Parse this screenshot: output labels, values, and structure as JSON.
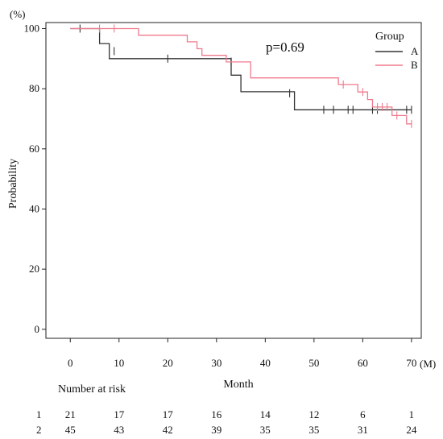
{
  "chart_data": {
    "type": "line",
    "subtype": "kaplan-meier",
    "ylabel": "Probability",
    "y_unit": "(%)",
    "xlabel": "Month",
    "x_unit": "(M)",
    "xlim": [
      -5,
      72
    ],
    "ylim": [
      -3,
      102
    ],
    "x_ticks": [
      0,
      10,
      20,
      30,
      40,
      50,
      60,
      70
    ],
    "y_ticks": [
      0,
      20,
      40,
      60,
      80,
      100
    ],
    "annotation": "p=0.69",
    "legend": {
      "title": "Group",
      "placement": "top-right",
      "entries": [
        {
          "label": "A",
          "color": "#333333"
        },
        {
          "label": "B",
          "color": "#f07a8e"
        }
      ]
    },
    "series": [
      {
        "name": "A",
        "color": "#333333",
        "steps": [
          [
            0,
            100
          ],
          [
            6,
            100
          ],
          [
            6,
            95
          ],
          [
            8,
            95
          ],
          [
            8,
            90
          ],
          [
            33,
            90
          ],
          [
            33,
            84.5
          ],
          [
            35,
            84.5
          ],
          [
            35,
            79
          ],
          [
            46,
            79
          ],
          [
            46,
            73
          ],
          [
            70,
            73
          ]
        ],
        "censors": [
          [
            2,
            100
          ],
          [
            9,
            92.5
          ],
          [
            20,
            90
          ],
          [
            33,
            89
          ],
          [
            45,
            78.5
          ],
          [
            52,
            73
          ],
          [
            54,
            73
          ],
          [
            57,
            73
          ],
          [
            58,
            73
          ],
          [
            62,
            73
          ],
          [
            63,
            73
          ],
          [
            69,
            73
          ],
          [
            70,
            73
          ]
        ]
      },
      {
        "name": "B",
        "color": "#f07a8e",
        "steps": [
          [
            0,
            100
          ],
          [
            14,
            100
          ],
          [
            14,
            97.8
          ],
          [
            24,
            97.8
          ],
          [
            24,
            95.6
          ],
          [
            26,
            95.6
          ],
          [
            26,
            93.3
          ],
          [
            27,
            93.3
          ],
          [
            27,
            91.1
          ],
          [
            32,
            91.1
          ],
          [
            32,
            88.9
          ],
          [
            37,
            88.9
          ],
          [
            37,
            83.6
          ],
          [
            55,
            83.6
          ],
          [
            55,
            81.4
          ],
          [
            59,
            81.4
          ],
          [
            59,
            78.9
          ],
          [
            61,
            78.9
          ],
          [
            61,
            76.4
          ],
          [
            62,
            76.4
          ],
          [
            62,
            73.9
          ],
          [
            66,
            73.9
          ],
          [
            66,
            71.1
          ],
          [
            69,
            71.1
          ],
          [
            69,
            68.3
          ],
          [
            70,
            68.3
          ]
        ],
        "censors": [
          [
            6,
            100
          ],
          [
            9,
            100
          ],
          [
            56,
            81.4
          ],
          [
            60,
            78.9
          ],
          [
            63,
            73.9
          ],
          [
            64,
            73.9
          ],
          [
            65,
            73.9
          ],
          [
            67,
            71.1
          ],
          [
            70,
            68.3
          ]
        ]
      }
    ],
    "risk_table": {
      "title": "Number at risk",
      "times": [
        0,
        10,
        20,
        30,
        40,
        50,
        60,
        70
      ],
      "rows": [
        {
          "label": "1",
          "values": [
            "21",
            "17",
            "17",
            "16",
            "14",
            "12",
            "6",
            "1"
          ]
        },
        {
          "label": "2",
          "values": [
            "45",
            "43",
            "42",
            "39",
            "35",
            "35",
            "31",
            "24"
          ]
        }
      ]
    }
  }
}
